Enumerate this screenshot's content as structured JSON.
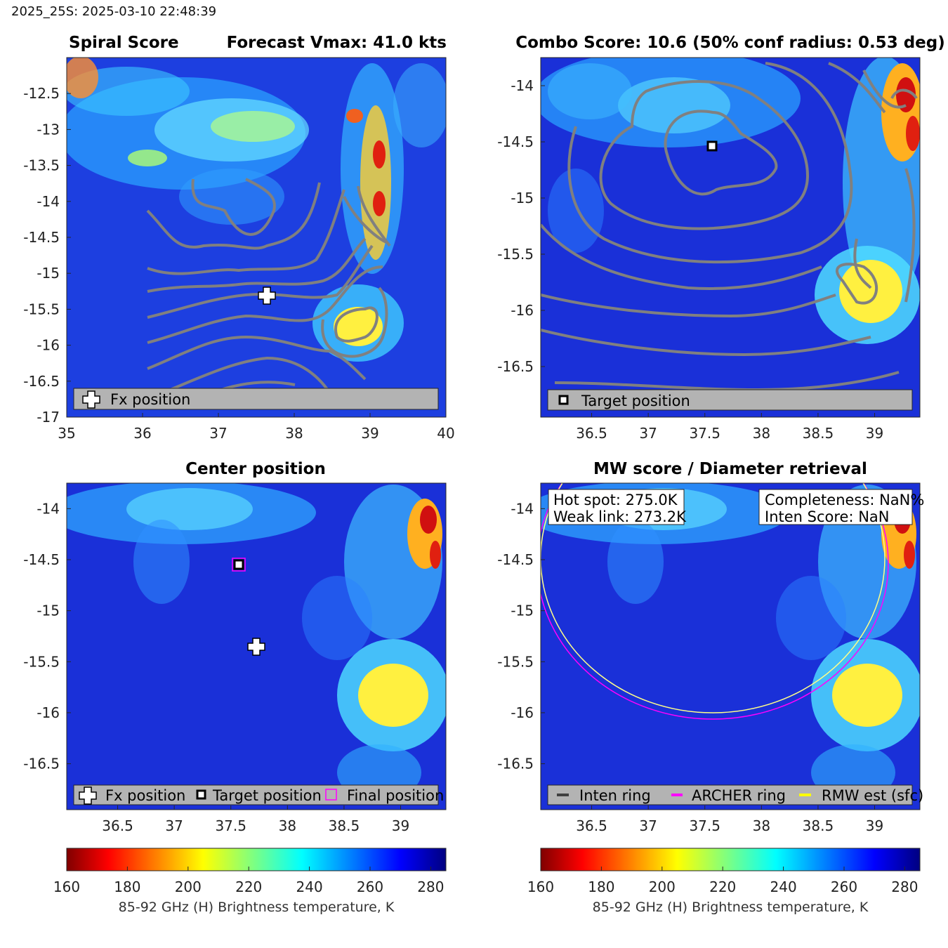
{
  "header": "2025_25S: 2025-03-10 22:48:39",
  "panels": {
    "spiral": {
      "title_left": "Spiral Score",
      "title_right": "Forecast Vmax: 41.0 kts",
      "legend": [
        "Fx position"
      ]
    },
    "combo": {
      "title": "Combo Score: 10.6  (50% conf radius: 0.53 deg)",
      "legend": [
        "Target position"
      ]
    },
    "center": {
      "title": "Center position",
      "legend": [
        "Fx position",
        "Target position",
        "Final position"
      ]
    },
    "mw": {
      "title": "MW score / Diameter retrieval",
      "box_left": [
        "Hot spot: 275.0K",
        "Weak link: 273.2K"
      ],
      "box_right": [
        "Completeness: NaN%",
        "Inten Score: NaN"
      ],
      "legend": [
        "Inten ring",
        "ARCHER ring",
        "RMW est (sfc)"
      ]
    }
  },
  "colorbar": {
    "label": "85-92 GHz (H) Brightness temperature, K",
    "ticks": [
      "160",
      "180",
      "200",
      "220",
      "240",
      "260",
      "280"
    ]
  },
  "chart_data": [
    {
      "type": "heatmap",
      "id": "spiral",
      "title": "Spiral Score    Forecast Vmax: 41.0 kts",
      "xlim": [
        35,
        40
      ],
      "ylim": [
        -17,
        -12.0
      ],
      "xticks": [
        "35",
        "36",
        "37",
        "38",
        "39",
        "40"
      ],
      "yticks": [
        "-12.5",
        "-13",
        "-13.5",
        "-14",
        "-14.5",
        "-15",
        "-15.5",
        "-16",
        "-16.5",
        "-17"
      ],
      "fx_position": [
        37.72,
        -15.37
      ],
      "clim": [
        160,
        285
      ]
    },
    {
      "type": "heatmap",
      "id": "combo",
      "title": "Combo Score: 10.6  (50% conf radius: 0.53 deg)",
      "xlim": [
        36.05,
        39.4
      ],
      "ylim": [
        -16.95,
        -13.75
      ],
      "xticks": [
        "36.5",
        "37",
        "37.5",
        "38",
        "38.5",
        "39"
      ],
      "yticks": [
        "-14",
        "-14.5",
        "-15",
        "-15.5",
        "-16",
        "-16.5"
      ],
      "target_position": [
        37.57,
        -14.57
      ],
      "clim": [
        160,
        285
      ]
    },
    {
      "type": "heatmap",
      "id": "center",
      "title": "Center position",
      "xlim": [
        36.05,
        39.4
      ],
      "ylim": [
        -16.95,
        -13.75
      ],
      "xticks": [
        "36.5",
        "37",
        "37.5",
        "38",
        "38.5",
        "39"
      ],
      "yticks": [
        "-14",
        "-14.5",
        "-15",
        "-15.5",
        "-16",
        "-16.5"
      ],
      "fx_position": [
        37.72,
        -15.37
      ],
      "target_position": [
        37.57,
        -14.57
      ],
      "final_position": [
        37.57,
        -14.57
      ],
      "clim": [
        160,
        285
      ]
    },
    {
      "type": "heatmap",
      "id": "mw",
      "title": "MW score / Diameter retrieval",
      "xlim": [
        36.05,
        39.4
      ],
      "ylim": [
        -16.95,
        -13.75
      ],
      "xticks": [
        "36.5",
        "37",
        "37.5",
        "38",
        "38.5",
        "39"
      ],
      "yticks": [
        "-14",
        "-14.5",
        "-15",
        "-15.5",
        "-16",
        "-16.5"
      ],
      "rings": [
        {
          "name": "RMW est (sfc)",
          "center": [
            37.57,
            -14.57
          ],
          "radius_deg": 1.45,
          "color": "#ffff66"
        },
        {
          "name": "ARCHER ring",
          "center": [
            37.57,
            -14.62
          ],
          "radius_deg": 1.45,
          "color": "#ff00ff"
        }
      ],
      "clim": [
        160,
        285
      ]
    }
  ]
}
